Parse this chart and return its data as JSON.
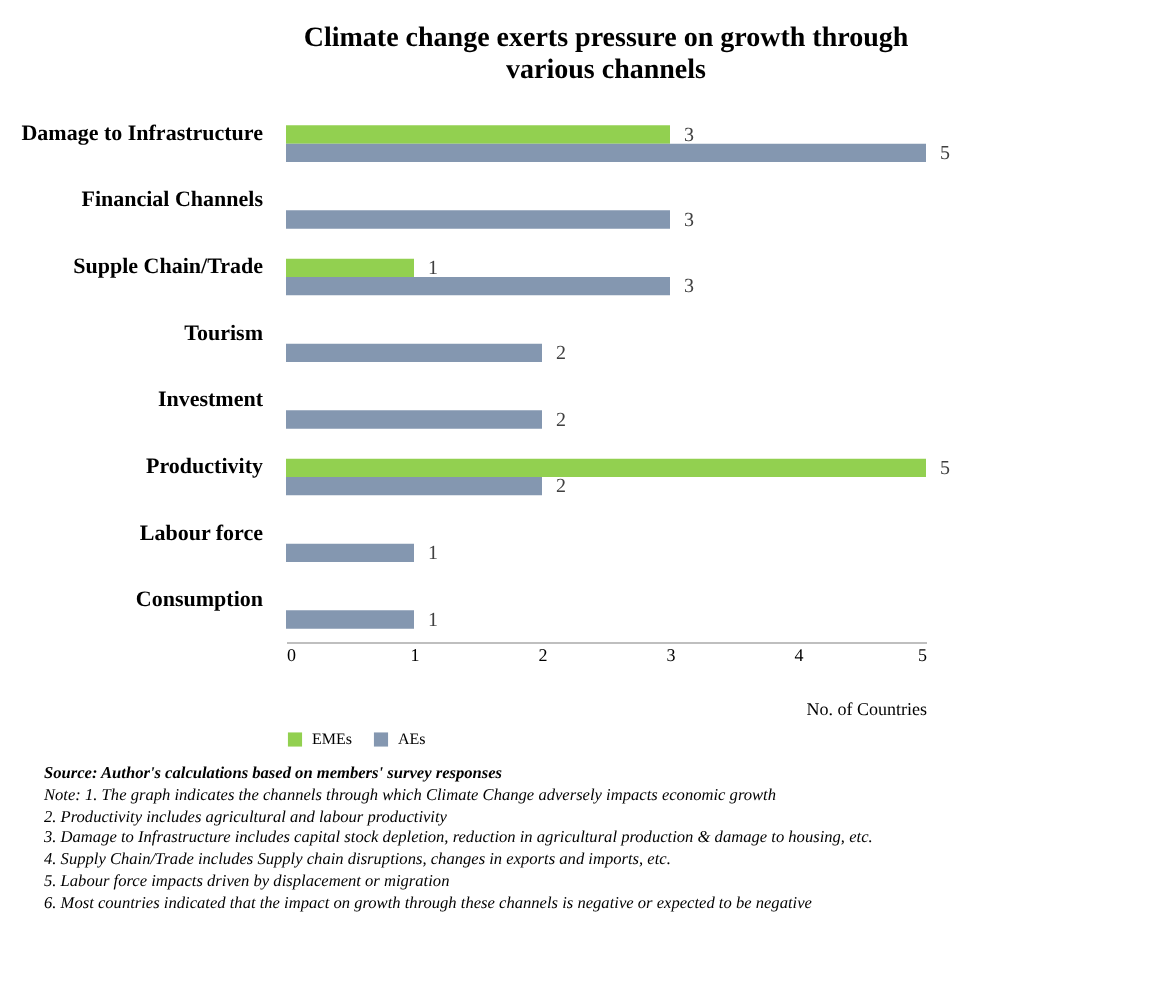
{
  "chart_data": {
    "type": "bar",
    "orientation": "horizontal",
    "title": "Climate change exerts pressure on growth through various channels",
    "xlabel": "No. of Countries",
    "categories": [
      "Damage to Infrastructure",
      "Financial Channels",
      "Supple Chain/Trade",
      "Tourism",
      "Investment",
      "Productivity",
      "Labour force",
      "Consumption"
    ],
    "series": [
      {
        "name": "EMEs",
        "color": "#92d050",
        "values": [
          3,
          null,
          1,
          null,
          null,
          5,
          null,
          null
        ]
      },
      {
        "name": "AEs",
        "color": "#8497b0",
        "values": [
          5,
          3,
          3,
          2,
          2,
          2,
          1,
          1
        ]
      }
    ],
    "xlim": [
      0,
      5
    ],
    "xticks": [
      0,
      1,
      2,
      3,
      4,
      5
    ],
    "data_labels": true,
    "legend": "bottom",
    "grid": false,
    "annotations": [
      "Source: Author's calculations based on members' survey responses",
      "Note: 1. The graph indicates the channels through which Climate Change adversely impacts economic growth",
      "2. Productivity includes agricultural and labour productivity",
      "3. Damage to Infrastructure includes capital stock depletion, reduction in agricultural production & damage to housing, etc.",
      "4. Supply Chain/Trade includes Supply chain disruptions, changes in exports and imports, etc.",
      "5. Labour force impacts driven by displacement or migration",
      "6. Most countries indicated that the impact on growth through these channels is negative or expected to be negative"
    ]
  }
}
